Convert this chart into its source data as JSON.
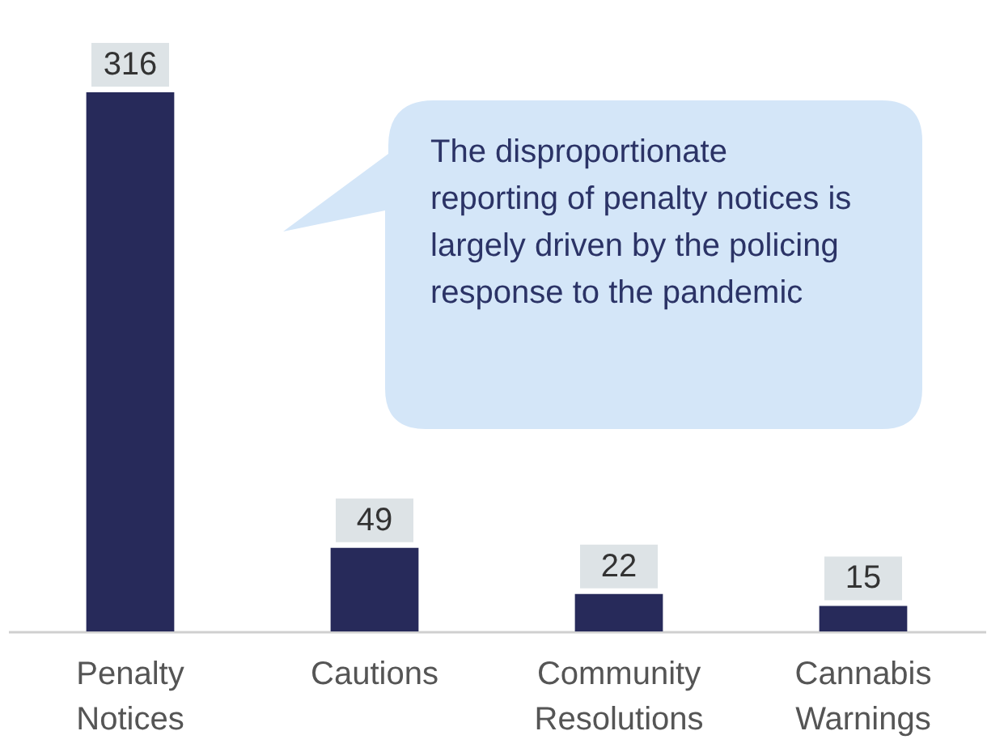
{
  "chart_data": {
    "type": "bar",
    "categories": [
      "Penalty Notices",
      "Cautions",
      "Community Resolutions",
      "Cannabis Warnings"
    ],
    "values": [
      316,
      49,
      22,
      15
    ],
    "color": "#272a5a",
    "data_labels": true,
    "annotations": [
      "The disproportionate reporting of penalty notices is largely driven by the policing response to the pandemic"
    ]
  }
}
